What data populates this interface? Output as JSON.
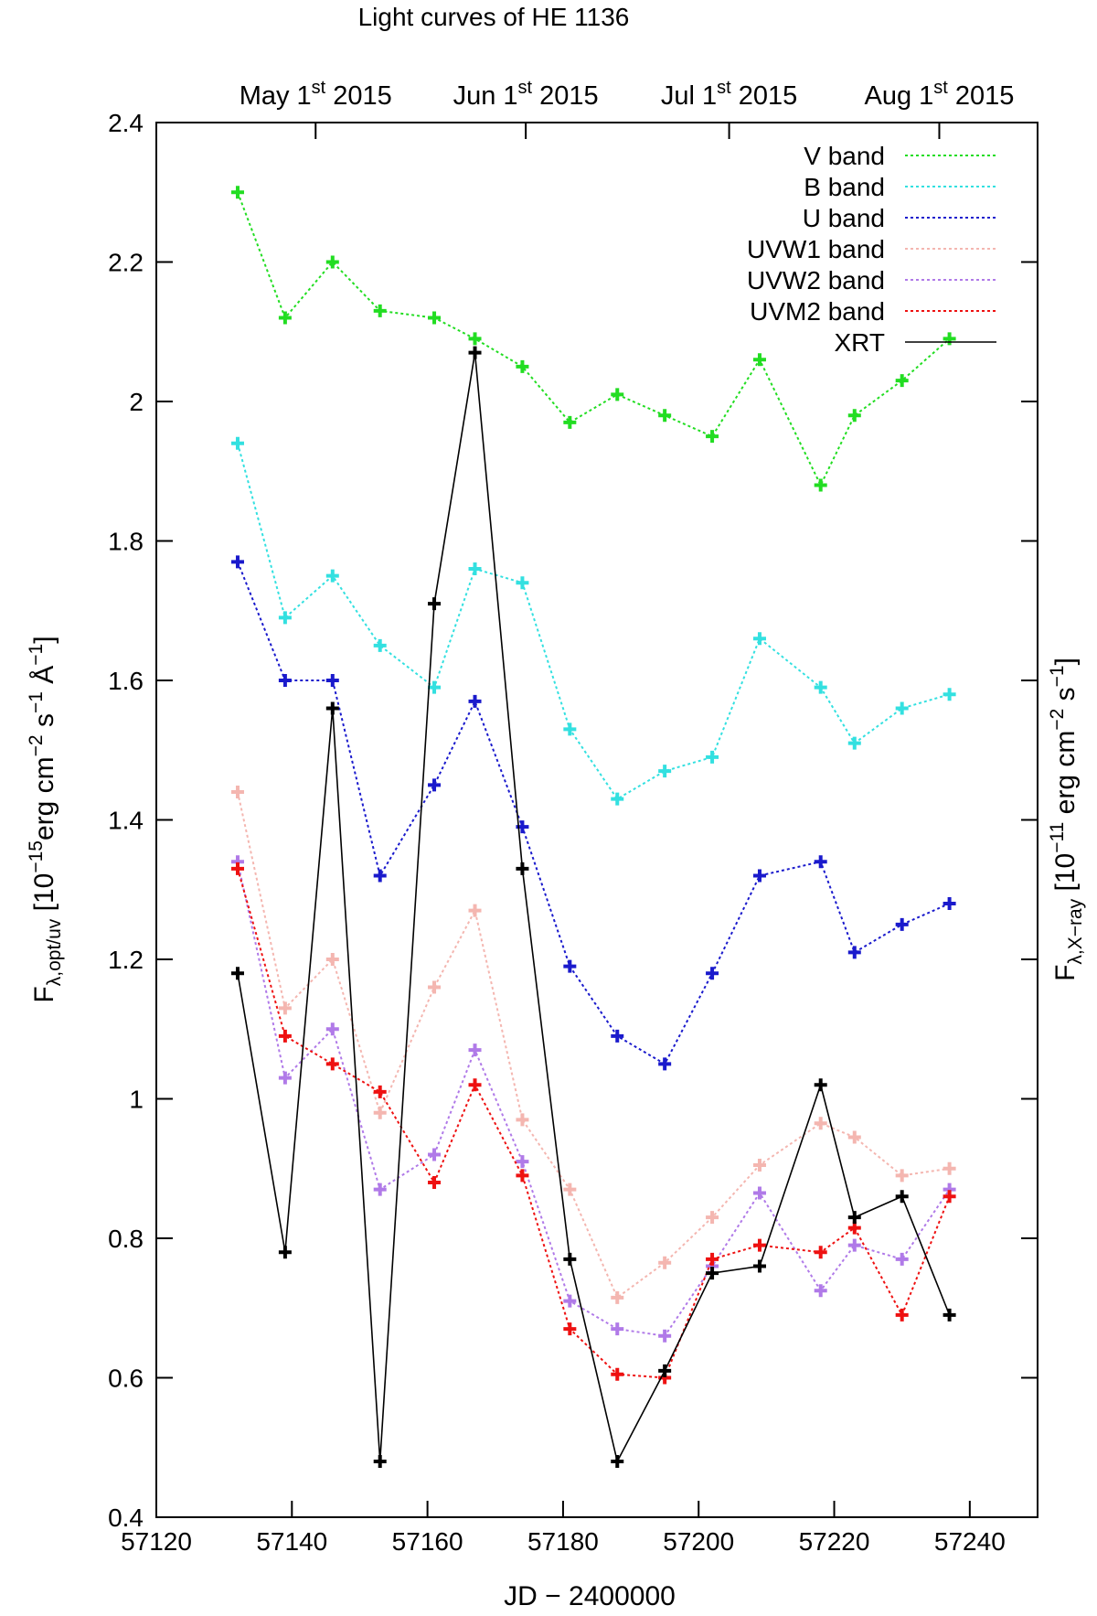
{
  "chart_data": {
    "type": "line",
    "title": "Light curves of HE 1136",
    "xlabel": "JD − 2400000",
    "ylabel_left": {
      "main": "F",
      "sub": "λ,opt/uv",
      "text1": " [10",
      "exp1": "−15",
      "text2": "erg cm",
      "exp2": "−2",
      "text3": " s",
      "exp3": "−1",
      "text4": " Å",
      "exp4": "−1",
      "text5": "]"
    },
    "ylabel_right": {
      "main": "F",
      "sub": "λ,X−ray",
      "text1": "  [10",
      "exp1": "−11",
      "text2": " erg cm",
      "exp2": "−2",
      "text3": " s",
      "exp3": "−1",
      "text4": "]"
    },
    "xlim": [
      57120,
      57250
    ],
    "ylim": [
      0.4,
      2.4
    ],
    "xticks": [
      57120,
      57140,
      57160,
      57180,
      57200,
      57220,
      57240
    ],
    "xtick_labels": [
      "57120",
      "57140",
      "57160",
      "57180",
      "57200",
      "57220",
      "57240"
    ],
    "yticks": [
      0.4,
      0.6,
      0.8,
      1.0,
      1.2,
      1.4,
      1.6,
      1.8,
      2.0,
      2.2,
      2.4
    ],
    "ytick_labels": [
      "0.4",
      "0.6",
      "0.8",
      "1",
      "1.2",
      "1.4",
      "1.6",
      "1.8",
      "2",
      "2.2",
      "2.4"
    ],
    "top_ticks": [
      {
        "jd": 57143.5,
        "month": "May 1",
        "sup": "st",
        "year": " 2015"
      },
      {
        "jd": 57174.5,
        "month": "Jun 1",
        "sup": "st",
        "year": " 2015"
      },
      {
        "jd": 57204.5,
        "month": "Jul 1",
        "sup": "st",
        "year": " 2015"
      },
      {
        "jd": 57235.5,
        "month": "Aug 1",
        "sup": "st",
        "year": " 2015"
      }
    ],
    "x": [
      57132,
      57139,
      57146,
      57153,
      57161,
      57167,
      57174,
      57181,
      57188,
      57195,
      57202,
      57209,
      57218,
      57223,
      57230,
      57237
    ],
    "series": [
      {
        "name": "V band",
        "color": "#22dd22",
        "dash": "dotted",
        "values": [
          2.3,
          2.12,
          2.2,
          2.13,
          2.12,
          2.09,
          2.05,
          1.97,
          2.01,
          1.98,
          1.95,
          2.06,
          1.88,
          1.98,
          2.03,
          2.09
        ]
      },
      {
        "name": "B band",
        "color": "#33e0e0",
        "dash": "dotted",
        "values": [
          1.94,
          1.69,
          1.75,
          1.65,
          1.59,
          1.76,
          1.74,
          1.53,
          1.43,
          1.47,
          1.49,
          1.66,
          1.59,
          1.51,
          1.56,
          1.58
        ]
      },
      {
        "name": "U band",
        "color": "#1a1acc",
        "dash": "dotted",
        "values": [
          1.77,
          1.6,
          1.6,
          1.32,
          1.45,
          1.57,
          1.39,
          1.19,
          1.09,
          1.05,
          1.18,
          1.32,
          1.34,
          1.21,
          1.25,
          1.28
        ]
      },
      {
        "name": "UVW1 band",
        "color": "#f4b6b0",
        "dash": "dotted",
        "values": [
          1.44,
          1.13,
          1.2,
          0.98,
          1.16,
          1.27,
          0.97,
          0.87,
          0.715,
          0.765,
          0.83,
          0.905,
          0.965,
          0.945,
          0.89,
          0.9
        ]
      },
      {
        "name": "UVW2 band",
        "color": "#b07ae8",
        "dash": "dotted",
        "values": [
          1.34,
          1.03,
          1.1,
          0.87,
          0.92,
          1.07,
          0.91,
          0.71,
          0.67,
          0.66,
          0.76,
          0.865,
          0.725,
          0.79,
          0.77,
          0.87
        ]
      },
      {
        "name": "UVM2 band",
        "color": "#ee1111",
        "dash": "dotted",
        "values": [
          1.33,
          1.09,
          1.05,
          1.01,
          0.88,
          1.02,
          0.89,
          0.67,
          0.605,
          0.6,
          0.77,
          0.79,
          0.78,
          0.815,
          0.69,
          0.86
        ]
      },
      {
        "name": "XRT",
        "color": "#000000",
        "dash": "solid",
        "values": [
          1.18,
          0.78,
          1.56,
          0.48,
          1.71,
          2.07,
          1.33,
          0.77,
          0.48,
          0.61,
          0.75,
          0.76,
          1.02,
          0.83,
          0.86,
          0.69
        ]
      }
    ],
    "legend_position": "top-right",
    "grid": false
  }
}
